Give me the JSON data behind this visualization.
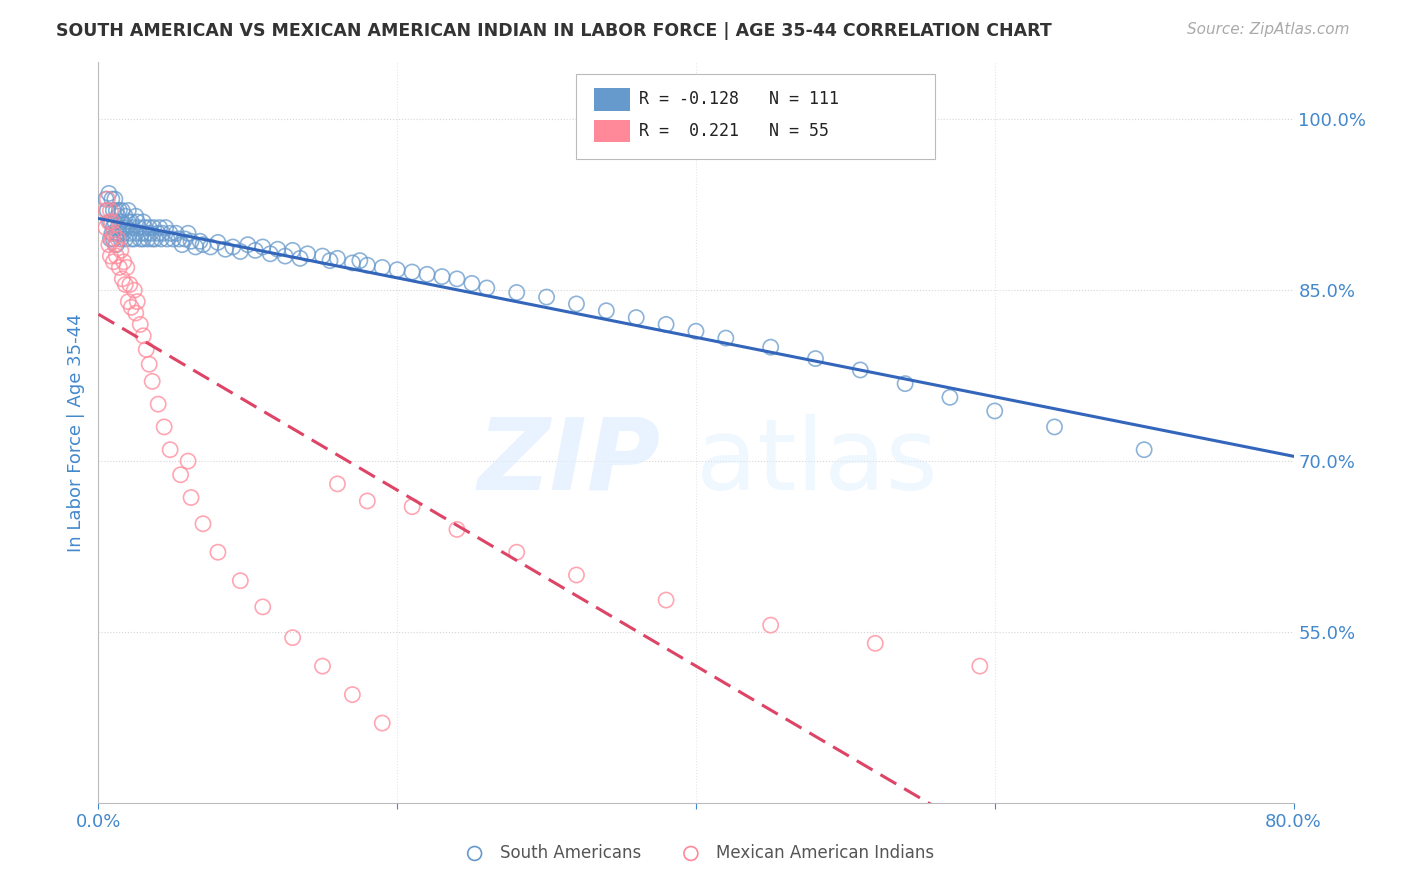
{
  "title": "SOUTH AMERICAN VS MEXICAN AMERICAN INDIAN IN LABOR FORCE | AGE 35-44 CORRELATION CHART",
  "source": "Source: ZipAtlas.com",
  "ylabel": "In Labor Force | Age 35-44",
  "xlim": [
    0.0,
    0.8
  ],
  "ylim": [
    0.4,
    1.05
  ],
  "yticks": [
    0.55,
    0.7,
    0.85,
    1.0
  ],
  "yticklabels": [
    "55.0%",
    "70.0%",
    "85.0%",
    "100.0%"
  ],
  "blue_R": -0.128,
  "blue_N": 111,
  "pink_R": 0.221,
  "pink_N": 55,
  "blue_color": "#6699CC",
  "pink_color": "#FF8899",
  "blue_trend_color": "#3366BB",
  "pink_trend_color": "#DD4466",
  "blue_label": "South Americans",
  "pink_label": "Mexican American Indians",
  "watermark_zip": "ZIP",
  "watermark_atlas": "atlas",
  "grid_color": "#CCCCCC",
  "axis_label_color": "#4488CC",
  "tick_color": "#4488CC",
  "blue_dots_x": [
    0.005,
    0.006,
    0.007,
    0.008,
    0.008,
    0.009,
    0.009,
    0.01,
    0.01,
    0.01,
    0.011,
    0.011,
    0.012,
    0.012,
    0.012,
    0.013,
    0.013,
    0.014,
    0.014,
    0.015,
    0.015,
    0.016,
    0.016,
    0.017,
    0.018,
    0.018,
    0.019,
    0.02,
    0.02,
    0.021,
    0.022,
    0.022,
    0.023,
    0.024,
    0.025,
    0.025,
    0.026,
    0.027,
    0.028,
    0.029,
    0.03,
    0.03,
    0.031,
    0.032,
    0.033,
    0.034,
    0.035,
    0.036,
    0.037,
    0.038,
    0.04,
    0.041,
    0.042,
    0.043,
    0.045,
    0.046,
    0.048,
    0.05,
    0.052,
    0.054,
    0.056,
    0.058,
    0.06,
    0.062,
    0.065,
    0.068,
    0.07,
    0.075,
    0.08,
    0.085,
    0.09,
    0.095,
    0.1,
    0.105,
    0.11,
    0.115,
    0.12,
    0.125,
    0.13,
    0.135,
    0.14,
    0.15,
    0.155,
    0.16,
    0.17,
    0.175,
    0.18,
    0.19,
    0.2,
    0.21,
    0.22,
    0.23,
    0.24,
    0.25,
    0.26,
    0.28,
    0.3,
    0.32,
    0.34,
    0.36,
    0.38,
    0.4,
    0.42,
    0.45,
    0.48,
    0.51,
    0.54,
    0.57,
    0.6,
    0.64,
    0.7
  ],
  "blue_dots_y": [
    0.93,
    0.92,
    0.935,
    0.91,
    0.895,
    0.93,
    0.9,
    0.92,
    0.905,
    0.895,
    0.91,
    0.93,
    0.9,
    0.92,
    0.89,
    0.915,
    0.905,
    0.9,
    0.92,
    0.895,
    0.91,
    0.905,
    0.92,
    0.9,
    0.915,
    0.895,
    0.905,
    0.91,
    0.92,
    0.9,
    0.895,
    0.91,
    0.905,
    0.895,
    0.915,
    0.9,
    0.91,
    0.905,
    0.895,
    0.9,
    0.91,
    0.895,
    0.905,
    0.9,
    0.895,
    0.905,
    0.9,
    0.895,
    0.905,
    0.895,
    0.9,
    0.905,
    0.895,
    0.9,
    0.905,
    0.895,
    0.9,
    0.895,
    0.9,
    0.895,
    0.89,
    0.895,
    0.9,
    0.893,
    0.888,
    0.893,
    0.89,
    0.888,
    0.892,
    0.886,
    0.888,
    0.884,
    0.89,
    0.885,
    0.888,
    0.882,
    0.886,
    0.88,
    0.885,
    0.878,
    0.882,
    0.88,
    0.876,
    0.878,
    0.874,
    0.876,
    0.872,
    0.87,
    0.868,
    0.866,
    0.864,
    0.862,
    0.86,
    0.856,
    0.852,
    0.848,
    0.844,
    0.838,
    0.832,
    0.826,
    0.82,
    0.814,
    0.808,
    0.8,
    0.79,
    0.78,
    0.768,
    0.756,
    0.744,
    0.73,
    0.71
  ],
  "pink_dots_x": [
    0.005,
    0.005,
    0.006,
    0.007,
    0.007,
    0.008,
    0.008,
    0.009,
    0.009,
    0.01,
    0.01,
    0.011,
    0.012,
    0.013,
    0.014,
    0.015,
    0.016,
    0.017,
    0.018,
    0.019,
    0.02,
    0.021,
    0.022,
    0.024,
    0.025,
    0.026,
    0.028,
    0.03,
    0.032,
    0.034,
    0.036,
    0.04,
    0.044,
    0.048,
    0.055,
    0.062,
    0.07,
    0.08,
    0.095,
    0.11,
    0.13,
    0.15,
    0.17,
    0.19,
    0.21,
    0.24,
    0.28,
    0.32,
    0.38,
    0.45,
    0.52,
    0.59,
    0.16,
    0.18,
    0.06
  ],
  "pink_dots_y": [
    0.92,
    0.905,
    0.93,
    0.91,
    0.89,
    0.92,
    0.88,
    0.91,
    0.895,
    0.9,
    0.875,
    0.89,
    0.88,
    0.895,
    0.87,
    0.885,
    0.86,
    0.875,
    0.855,
    0.87,
    0.84,
    0.855,
    0.835,
    0.85,
    0.83,
    0.84,
    0.82,
    0.81,
    0.798,
    0.785,
    0.77,
    0.75,
    0.73,
    0.71,
    0.688,
    0.668,
    0.645,
    0.62,
    0.595,
    0.572,
    0.545,
    0.52,
    0.495,
    0.47,
    0.66,
    0.64,
    0.62,
    0.6,
    0.578,
    0.556,
    0.54,
    0.52,
    0.68,
    0.665,
    0.7
  ],
  "trend_x_start": 0.0,
  "trend_x_end": 0.8
}
